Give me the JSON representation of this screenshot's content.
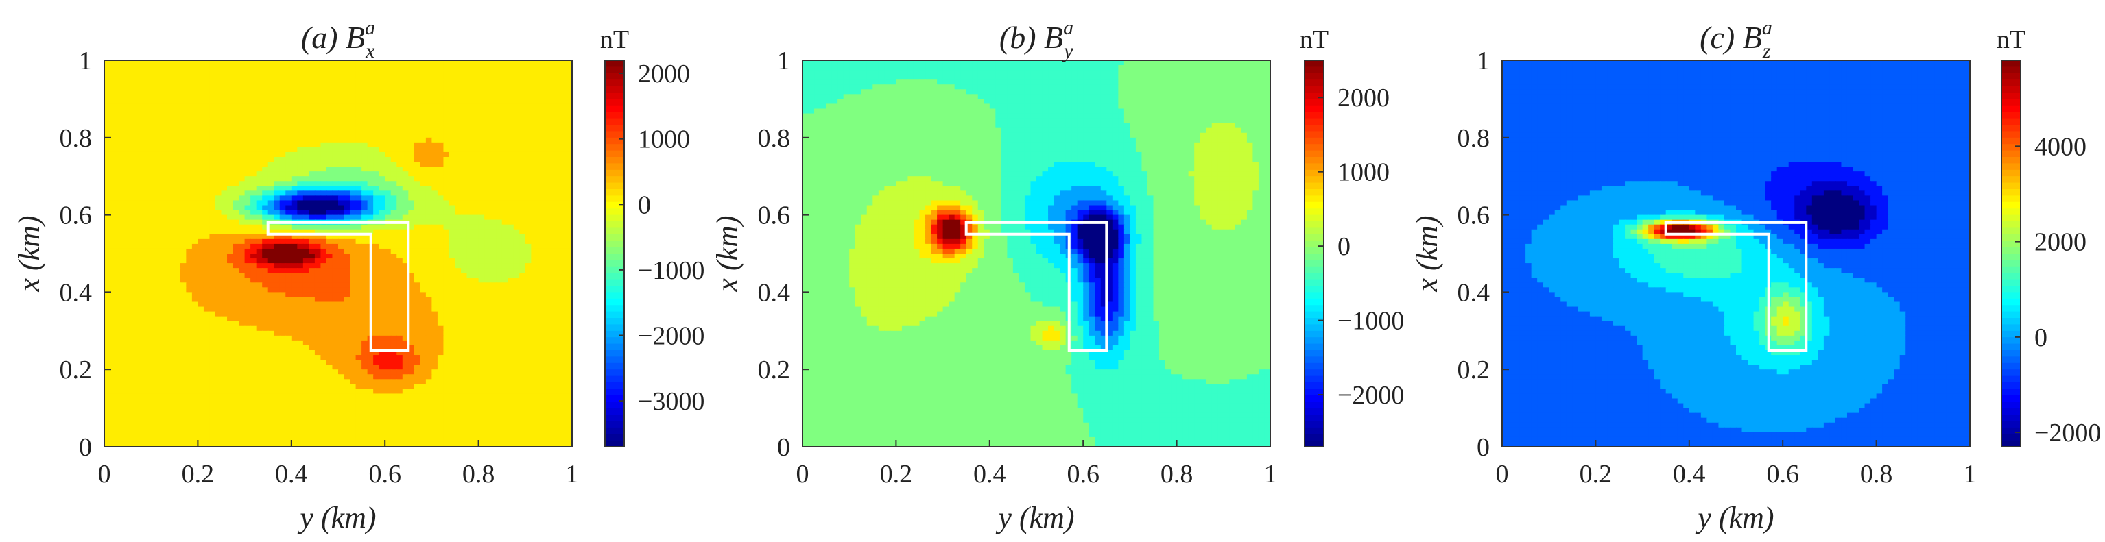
{
  "chart_data": [
    {
      "type": "heatmap",
      "panel_label": "(a)",
      "title": "(a) B_x^a",
      "title_parts": {
        "prefix": "(a) B",
        "sub": "x",
        "sup": "a"
      },
      "xlabel": "y (km)",
      "ylabel": "x (km)",
      "xlim": [
        0,
        1
      ],
      "ylim": [
        0,
        1
      ],
      "xticks": [
        "0",
        "0.2",
        "0.4",
        "0.6",
        "0.8",
        "1"
      ],
      "yticks": [
        "0",
        "0.2",
        "0.4",
        "0.6",
        "0.8",
        "1"
      ],
      "colorbar": {
        "unit": "nT",
        "range": [
          -3700,
          2200
        ],
        "ticks": [
          2000,
          1000,
          0,
          -1000,
          -2000,
          -3000
        ],
        "tick_labels": [
          "2000",
          "1000",
          "0",
          "−1000",
          "−2000",
          "−3000"
        ]
      },
      "background_value": 0,
      "features": [
        {
          "kind": "minimum",
          "y_km": 0.45,
          "x_km": 0.6,
          "value": -3600
        },
        {
          "kind": "maximum",
          "y_km": 0.4,
          "x_km": 0.5,
          "value": 2100
        },
        {
          "kind": "maximum",
          "y_km": 0.61,
          "x_km": 0.22,
          "value": 1600
        },
        {
          "kind": "maximum",
          "y_km": 0.7,
          "x_km": 0.75,
          "value": 500
        }
      ],
      "overlay": "L-shaped source body outline (white)"
    },
    {
      "type": "heatmap",
      "panel_label": "(b)",
      "title": "(b) B_y^a",
      "title_parts": {
        "prefix": "(b) B",
        "sub": "y",
        "sup": "a"
      },
      "xlabel": "y (km)",
      "ylabel": "x (km)",
      "xlim": [
        0,
        1
      ],
      "ylim": [
        0,
        1
      ],
      "xticks": [
        "0",
        "0.2",
        "0.4",
        "0.6",
        "0.8",
        "1"
      ],
      "yticks": [
        "0",
        "0.2",
        "0.4",
        "0.6",
        "0.8",
        "1"
      ],
      "colorbar": {
        "unit": "nT",
        "range": [
          -2700,
          2500
        ],
        "ticks": [
          2000,
          1000,
          0,
          -1000,
          -2000
        ],
        "tick_labels": [
          "2000",
          "1000",
          "0",
          "−1000",
          "−2000"
        ]
      },
      "background_value": -300,
      "features": [
        {
          "kind": "maximum",
          "y_km": 0.32,
          "x_km": 0.55,
          "value": 2400
        },
        {
          "kind": "minimum",
          "y_km": 0.63,
          "x_km": 0.45,
          "value": -2600
        },
        {
          "kind": "maximum",
          "y_km": 0.53,
          "x_km": 0.29,
          "value": 600
        }
      ],
      "overlay": "L-shaped source body outline (white)"
    },
    {
      "type": "heatmap",
      "panel_label": "(c)",
      "title": "(c) B_z^a",
      "title_parts": {
        "prefix": "(c) B",
        "sub": "z",
        "sup": "a"
      },
      "xlabel": "y (km)",
      "ylabel": "x (km)",
      "xlim": [
        0,
        1
      ],
      "ylim": [
        0,
        1
      ],
      "xticks": [
        "0",
        "0.2",
        "0.4",
        "0.6",
        "0.8",
        "1"
      ],
      "yticks": [
        "0",
        "0.2",
        "0.4",
        "0.6",
        "0.8",
        "1"
      ],
      "colorbar": {
        "unit": "nT",
        "range": [
          -2300,
          5800
        ],
        "ticks": [
          4000,
          2000,
          0,
          -2000
        ],
        "tick_labels": [
          "4000",
          "2000",
          "0",
          "−2000"
        ]
      },
      "background_value": -300,
      "features": [
        {
          "kind": "maximum",
          "y_km": 0.38,
          "x_km": 0.56,
          "value": 5600
        },
        {
          "kind": "minimum",
          "y_km": 0.7,
          "x_km": 0.6,
          "value": -2200
        },
        {
          "kind": "maximum",
          "y_km": 0.61,
          "x_km": 0.3,
          "value": 2200
        }
      ],
      "overlay": "L-shaped source body outline (white)"
    }
  ]
}
